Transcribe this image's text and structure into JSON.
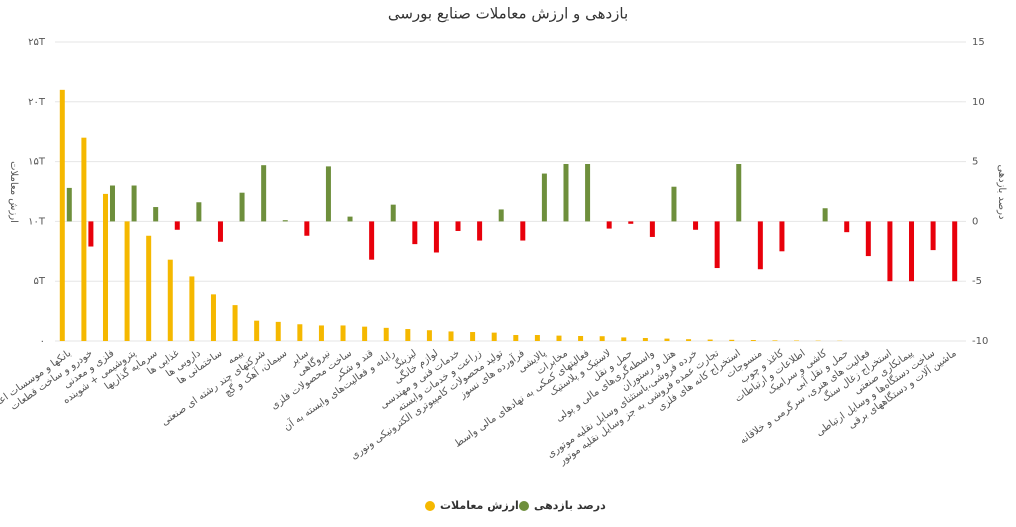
{
  "chart_data": {
    "type": "bar",
    "title": "بازدهی و ارزش معاملات صنایع بورسی",
    "y_label": "ارزش معاملات",
    "y2_label": "درصد بازدهی",
    "categories": [
      "بانکها و موسسات اعتباری",
      "خودرو و ساخت قطعات",
      "فلزی و معدنی",
      "پتروشیمی + شوینده",
      "سرمایه گذاریها",
      "غذایی ها",
      "دارویی ها",
      "ساختمانی ها",
      "بیمه",
      "شرکتهای چند رشته ای صنعتی",
      "سیمان، آهک و گچ",
      "سایر",
      "نیروگاهی",
      "ساخت محصولات فلزی",
      "قند و شکر",
      "رایانه و فعالیت‌های وابسته به آن",
      "لیزینگ",
      "لوازم خانگی",
      "خدمات فنی و مهندسی",
      "زراعت و خدمات وابسته",
      "تولید محصولات کامپیوتری الکترونیکی ونوری",
      "فرآورده های نسوز",
      "پالایشی",
      "مخابرات",
      "فعالیتهای کمکی به نهادهای مالی واسط",
      "لاستیک و پلاستیک",
      "حمل و نقل",
      "واسطه‌گری‌های مالی و پولی",
      "هتل و رستوران",
      "خرده فروشی،باستثنای وسایل نقلیه موتوری",
      "تجارت عمده فروشی به جز وسایل نقلیه موتور",
      "استخراج کانه های فلزی",
      "منسوجات",
      "کاغذ و چوب",
      "اطلاعات و ارتباطات",
      "کاشی و سرامیک",
      "حمل و نقل آبی",
      "فعالیت های هنری، سرگرمی و خلاقانه",
      "استخراج زغال سنگ",
      "پیمانکاری صنعتی",
      "ساخت دستگاه‌ها و وسایل ارتباطی",
      "ماشین آلات و دستگاههای برقی"
    ],
    "series": [
      {
        "name": "ارزش معاملات",
        "color": "#f5b800",
        "values": [
          21.0,
          17.0,
          12.3,
          10.0,
          8.8,
          6.8,
          5.4,
          3.9,
          3.0,
          1.7,
          1.6,
          1.4,
          1.3,
          1.3,
          1.2,
          1.1,
          1.0,
          0.9,
          0.8,
          0.75,
          0.7,
          0.5,
          0.5,
          0.45,
          0.42,
          0.4,
          0.3,
          0.25,
          0.2,
          0.15,
          0.12,
          0.1,
          0.08,
          0.05,
          0.04,
          0.03,
          0.02,
          0,
          0,
          0,
          0,
          0
        ]
      },
      {
        "name": "درصد بازدهی",
        "color": "#6e8f3c",
        "negative_color": "#e8000b",
        "axis": "y2",
        "values": [
          2.8,
          -2.1,
          3.0,
          3.0,
          1.2,
          -0.7,
          1.6,
          -1.7,
          2.4,
          4.7,
          0.1,
          -1.2,
          4.6,
          0.4,
          -3.2,
          1.4,
          -1.9,
          -2.6,
          -0.8,
          -1.6,
          1.0,
          -1.6,
          4.0,
          4.8,
          4.8,
          -0.6,
          -0.2,
          -1.3,
          2.9,
          -0.7,
          -3.9,
          4.8,
          -4.0,
          -2.5,
          0,
          1.1,
          -0.9,
          -2.9,
          -5,
          -5,
          -2.4,
          -5
        ]
      }
    ],
    "ylim": [
      0,
      25
    ],
    "yticks": [
      {
        "value": 0,
        "label": "۰"
      },
      {
        "value": 5,
        "label": "۵T"
      },
      {
        "value": 10,
        "label": "۱۰T"
      },
      {
        "value": 15,
        "label": "۱۵T"
      },
      {
        "value": 20,
        "label": "۲۰T"
      },
      {
        "value": 25,
        "label": "۲۵T"
      }
    ],
    "y2lim": [
      -10,
      15
    ],
    "y2ticks": [
      -10,
      -5,
      0,
      5,
      10,
      15
    ],
    "grid": true
  }
}
